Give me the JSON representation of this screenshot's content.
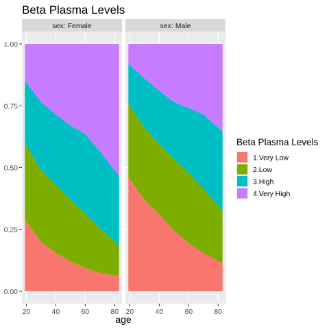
{
  "chart_data": {
    "type": "area",
    "stacked": true,
    "title": "Beta Plasma Levels",
    "xlabel": "age",
    "ylabel": "",
    "xlim": [
      17,
      85
    ],
    "ylim": [
      -0.05,
      1.05
    ],
    "x_ticks": [
      20,
      40,
      60,
      80
    ],
    "y_ticks": [
      0,
      0.25,
      0.5,
      0.75,
      1
    ],
    "y_tick_labels": [
      "0.00",
      "0.25",
      "0.50",
      "0.75",
      "1.00"
    ],
    "grid": true,
    "legend": {
      "title": "Beta Plasma Levels",
      "placement": "right",
      "entries": [
        "1.Very Low",
        "2.Low",
        "3.High",
        "4.Very High"
      ]
    },
    "colors": [
      "#F8766D",
      "#7CAE00",
      "#00BFC4",
      "#C77CFF"
    ],
    "panels": [
      {
        "strip": "sex: Female",
        "x": [
          19,
          30,
          40,
          50,
          60,
          70,
          83
        ],
        "series": [
          {
            "name": "1.Very Low",
            "values": [
              0.29,
              0.2,
              0.155,
              0.12,
              0.095,
              0.075,
              0.06
            ]
          },
          {
            "name": "2.Low",
            "values": [
              0.31,
              0.29,
              0.275,
              0.25,
              0.22,
              0.18,
              0.125
            ]
          },
          {
            "name": "3.High",
            "values": [
              0.25,
              0.275,
              0.285,
              0.3,
              0.32,
              0.31,
              0.28
            ]
          },
          {
            "name": "4.Very High",
            "values": [
              0.15,
              0.235,
              0.285,
              0.33,
              0.365,
              0.435,
              0.535
            ]
          }
        ]
      },
      {
        "strip": "sex: Male",
        "x": [
          19,
          30,
          40,
          50,
          60,
          70,
          83
        ],
        "series": [
          {
            "name": "1.Very Low",
            "values": [
              0.46,
              0.37,
              0.31,
              0.245,
              0.195,
              0.155,
              0.115
            ]
          },
          {
            "name": "2.Low",
            "values": [
              0.3,
              0.29,
              0.285,
              0.29,
              0.285,
              0.26,
              0.21
            ]
          },
          {
            "name": "3.High",
            "values": [
              0.16,
              0.2,
              0.215,
              0.23,
              0.26,
              0.3,
              0.32
            ]
          },
          {
            "name": "4.Very High",
            "values": [
              0.08,
              0.14,
              0.19,
              0.235,
              0.26,
              0.285,
              0.355
            ]
          }
        ]
      }
    ]
  }
}
